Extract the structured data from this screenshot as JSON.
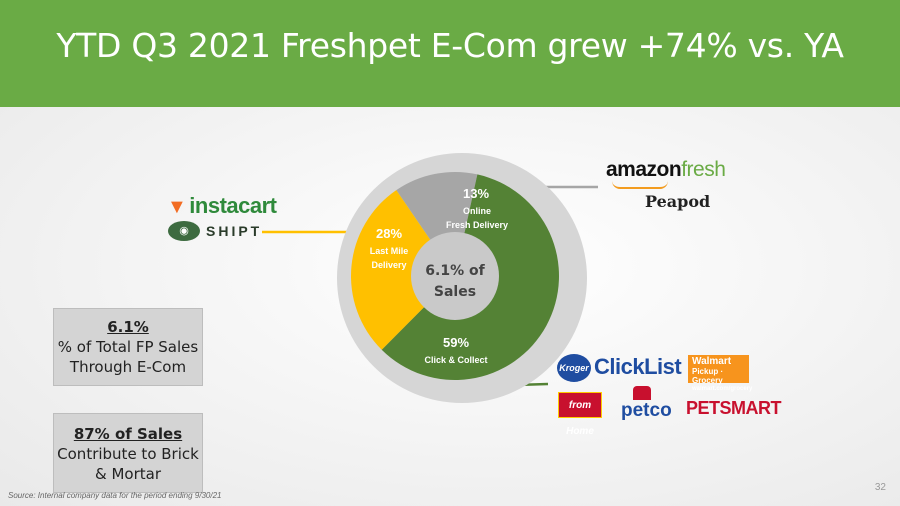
{
  "title": "YTD Q3 2021 Freshpet E-Com grew +74% vs. YA",
  "colors": {
    "header": "#6aab45",
    "green": "#548235",
    "yellow": "#ffc000",
    "gray": "#a6a6a6"
  },
  "chart_data": {
    "type": "pie",
    "center_label_line1": "6.1% of",
    "center_label_line2": "Sales",
    "slices": [
      {
        "pct": "13%",
        "label_line1": "Online",
        "label_line2": "Fresh Delivery",
        "value": 13,
        "color": "#a6a6a6"
      },
      {
        "pct": "59%",
        "label_line1": "Click & Collect",
        "label_line2": "",
        "value": 59,
        "color": "#548235"
      },
      {
        "pct": "28%",
        "label_line1": "Last Mile",
        "label_line2": "Delivery",
        "value": 28,
        "color": "#ffc000"
      }
    ]
  },
  "box1": {
    "heading": "6.1%",
    "line1": "% of Total FP Sales",
    "line2": "Through E-Com"
  },
  "box2": {
    "heading": "87% of Sales",
    "line1": "Contribute to Brick",
    "line2": "& Mortar"
  },
  "logos": {
    "instacart": "instacart",
    "shipt": "SHIPT",
    "amazon": "amazon",
    "amazon_fresh": "fresh",
    "peapod": "Peapod",
    "kroger": "Kroger",
    "clicklist": "ClickList",
    "walmart_line1": "Walmart",
    "walmart_line2": "Pickup · Grocery",
    "walmart_line3": "walmart.com/grocery",
    "fromhome": "from Home",
    "petco": "petco",
    "petsmart": "PETSMART"
  },
  "source": "Source:  Internal company data for the period ending 9/30/21",
  "page_number": "32"
}
